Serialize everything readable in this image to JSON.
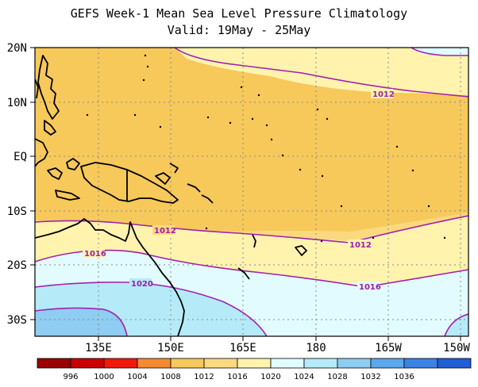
{
  "title": {
    "line1": "GEFS Week-1 Mean Sea Level Pressure Climatology",
    "line2": "Valid: 19May - 25May"
  },
  "map": {
    "lat_labels": [
      "20N",
      "10N",
      "EQ",
      "10S",
      "20S",
      "30S"
    ],
    "lon_labels": [
      "135E",
      "150E",
      "165E",
      "180",
      "165W",
      "150W"
    ],
    "contour_labels": [
      "1012",
      "1012",
      "1012",
      "1016",
      "1016",
      "1020"
    ],
    "colors": {
      "c1004_1008": "#f6c95a",
      "c1008_1012": "#fbd97e",
      "c1012_1016": "#fff3ae",
      "c1016_1020": "#e2fbff",
      "c1020_1024": "#b5ebf8",
      "c1024_1028": "#8fcdf2",
      "contour": "#a020b0",
      "coast": "#000000"
    }
  },
  "colorbar": {
    "labels": [
      "996",
      "1000",
      "1004",
      "1008",
      "1012",
      "1016",
      "1020",
      "1024",
      "1028",
      "1032",
      "1036"
    ],
    "colors": [
      "#9b0000",
      "#c80000",
      "#f01a0a",
      "#f58a30",
      "#f6c95a",
      "#fbd97e",
      "#fff3ae",
      "#e2fbff",
      "#b5ebf8",
      "#8fcdf2",
      "#5aa8ee",
      "#3a82e6",
      "#1f5ed6"
    ]
  }
}
